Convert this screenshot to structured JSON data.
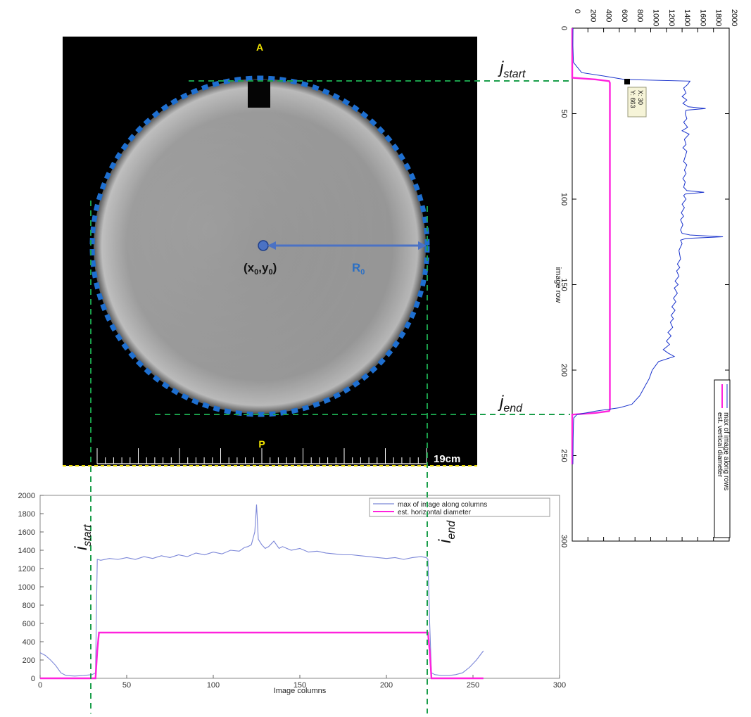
{
  "image_panel": {
    "top_marker": "A",
    "bottom_marker": "P",
    "scale_label": "19cm",
    "center_label": "(x0,y0)",
    "radius_label": "R0"
  },
  "annotations": {
    "j_start": "jstart",
    "j_end": "jend",
    "i_start": "istart",
    "i_end": "iend"
  },
  "colors": {
    "max_line": "#1a33cc",
    "est_line": "#ff22dd",
    "guide": "#1a9e4a",
    "circle_dots": "#1e6fd0",
    "arrow": "#4b72c4",
    "image_label": "#f2e500",
    "tooltip_bg": "#f6f4d8"
  },
  "chart_data": [
    {
      "type": "line",
      "orientation": "rotated-90",
      "xlabel": "image row",
      "ylabel": "",
      "xlim": [
        0,
        300
      ],
      "ylim": [
        0,
        2000
      ],
      "x_ticks": [
        0,
        50,
        100,
        150,
        200,
        250,
        300
      ],
      "y_ticks": [
        0,
        200,
        400,
        600,
        800,
        1000,
        1200,
        1400,
        1600,
        1800,
        2000
      ],
      "legend": [
        "est. vertical diameter",
        "max of image along rows"
      ],
      "legend_position": "bottom-right",
      "datatip": {
        "x": 30,
        "y": 663,
        "line1": "X: 30",
        "line2": "Y: 663"
      },
      "series": [
        {
          "name": "est. vertical diameter",
          "x": [
            0,
            29,
            30,
            31,
            32,
            223,
            224,
            225,
            226,
            255
          ],
          "y": [
            0,
            0,
            300,
            470,
            480,
            480,
            470,
            300,
            0,
            0
          ]
        },
        {
          "name": "max of image along rows",
          "x": [
            0,
            10,
            20,
            26,
            28,
            30,
            31,
            33,
            35,
            38,
            40,
            42,
            44,
            46,
            47,
            48,
            50,
            53,
            55,
            58,
            60,
            62,
            65,
            68,
            70,
            72,
            75,
            78,
            80,
            83,
            85,
            88,
            90,
            93,
            95,
            96,
            97,
            98,
            100,
            103,
            105,
            108,
            110,
            112,
            115,
            118,
            120,
            121,
            122,
            123,
            124,
            126,
            130,
            135,
            138,
            140,
            142,
            145,
            148,
            150,
            152,
            155,
            158,
            160,
            163,
            165,
            168,
            170,
            172,
            175,
            178,
            180,
            183,
            185,
            188,
            190,
            192,
            195,
            200,
            205,
            210,
            215,
            220,
            222,
            224,
            226,
            228,
            232,
            240,
            250,
            255
          ],
          "y": [
            10,
            8,
            15,
            120,
            400,
            663,
            1500,
            1470,
            1420,
            1450,
            1400,
            1460,
            1410,
            1480,
            1700,
            1450,
            1440,
            1460,
            1420,
            1470,
            1400,
            1490,
            1430,
            1450,
            1410,
            1460,
            1440,
            1420,
            1460,
            1430,
            1450,
            1410,
            1440,
            1420,
            1460,
            1680,
            1440,
            1420,
            1450,
            1400,
            1430,
            1390,
            1420,
            1380,
            1410,
            1380,
            1400,
            1500,
            1920,
            1450,
            1380,
            1400,
            1360,
            1380,
            1340,
            1370,
            1330,
            1360,
            1310,
            1350,
            1300,
            1340,
            1290,
            1320,
            1270,
            1310,
            1260,
            1290,
            1250,
            1280,
            1220,
            1260,
            1200,
            1240,
            1160,
            1220,
            1300,
            1100,
            1020,
            980,
            920,
            860,
            760,
            600,
            300,
            60,
            20,
            15,
            12,
            10,
            8
          ]
        }
      ]
    },
    {
      "type": "line",
      "xlabel": "Image columns",
      "ylabel": "",
      "xlim": [
        0,
        300
      ],
      "ylim": [
        0,
        2000
      ],
      "x_ticks": [
        0,
        50,
        100,
        150,
        200,
        250,
        300
      ],
      "y_ticks": [
        0,
        200,
        400,
        600,
        800,
        1000,
        1200,
        1400,
        1600,
        1800,
        2000
      ],
      "legend": [
        "max of image along columns",
        "est. horizontal diameter"
      ],
      "legend_position": "top-right",
      "series": [
        {
          "name": "max of image along columns",
          "x": [
            0,
            3,
            6,
            9,
            12,
            15,
            20,
            25,
            30,
            32,
            33,
            35,
            40,
            45,
            50,
            55,
            60,
            65,
            70,
            75,
            80,
            85,
            90,
            95,
            100,
            105,
            110,
            115,
            118,
            120,
            122,
            124,
            125,
            126,
            128,
            130,
            132,
            135,
            138,
            140,
            145,
            150,
            155,
            160,
            165,
            170,
            175,
            180,
            185,
            190,
            195,
            200,
            205,
            210,
            215,
            220,
            223,
            224,
            225,
            226,
            228,
            232,
            236,
            240,
            244,
            248,
            252,
            256
          ],
          "y": [
            280,
            250,
            200,
            140,
            60,
            30,
            25,
            30,
            40,
            60,
            1300,
            1290,
            1310,
            1300,
            1320,
            1300,
            1330,
            1310,
            1340,
            1320,
            1350,
            1330,
            1370,
            1350,
            1380,
            1360,
            1400,
            1390,
            1430,
            1440,
            1460,
            1600,
            1900,
            1520,
            1460,
            1420,
            1440,
            1500,
            1420,
            1440,
            1400,
            1420,
            1380,
            1390,
            1370,
            1360,
            1350,
            1350,
            1340,
            1330,
            1320,
            1310,
            1320,
            1300,
            1320,
            1330,
            1320,
            1300,
            600,
            60,
            40,
            30,
            30,
            40,
            60,
            120,
            200,
            300
          ]
        },
        {
          "name": "est. horizontal diameter",
          "x": [
            0,
            32,
            33,
            34,
            224,
            225,
            226,
            256
          ],
          "y": [
            0,
            0,
            300,
            500,
            500,
            300,
            0,
            0
          ]
        }
      ]
    }
  ]
}
